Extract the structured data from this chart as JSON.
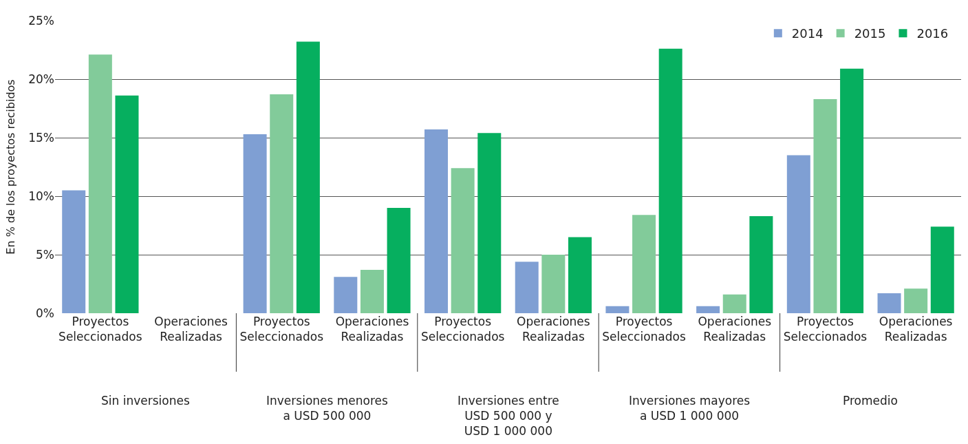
{
  "chart_data": {
    "type": "bar",
    "ylabel": "En % de los proyectos recibidos",
    "categories": [
      "Proyectos\nSeleccionados",
      "Operaciones\nRealizadas",
      "Proyectos\nSeleccionados",
      "Operaciones\nRealizadas",
      "Proyectos\nSeleccionados",
      "Operaciones\nRealizadas",
      "Proyectos\nSeleccionados",
      "Operaciones\nRealizadas",
      "Proyectos\nSeleccionados",
      "Operaciones\nRealizadas"
    ],
    "series": [
      {
        "name": "2014",
        "color": "#7f9fd3",
        "values": [
          10.5,
          0,
          15.3,
          3.1,
          15.7,
          4.4,
          0.6,
          0.6,
          13.5,
          1.7
        ]
      },
      {
        "name": "2015",
        "color": "#82cb9a",
        "values": [
          22.1,
          0,
          18.7,
          3.7,
          12.4,
          5.0,
          8.4,
          1.6,
          18.3,
          2.1
        ]
      },
      {
        "name": "2016",
        "color": "#06af5f",
        "values": [
          18.6,
          0,
          23.2,
          9.0,
          15.4,
          6.5,
          22.6,
          8.3,
          20.9,
          7.4
        ]
      }
    ],
    "annotations": [
      "Sin inversiones",
      "Inversiones menores\na USD 500 000",
      "Inversiones entre\nUSD 500 000 y\nUSD 1 000 000",
      "Inversiones mayores\na USD 1 000 000",
      "Promedio"
    ],
    "ylim": [
      0,
      25
    ],
    "yticks": [
      {
        "value": 0,
        "label": "0%"
      },
      {
        "value": 5,
        "label": "5%"
      },
      {
        "value": 10,
        "label": "10%"
      },
      {
        "value": 15,
        "label": "15%"
      },
      {
        "value": 20,
        "label": "20%"
      },
      {
        "value": 25,
        "label": "25%"
      }
    ],
    "grid": "y",
    "legend": "top right"
  }
}
